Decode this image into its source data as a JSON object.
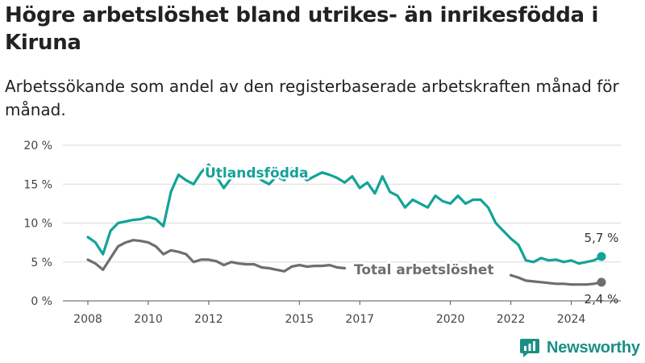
{
  "title": "Högre arbetslöshet bland utrikes- än inrikesfödda i Kiruna",
  "subtitle": "Arbetssökande som andel av den registerbaserade arbetskraften månad för månad.",
  "brand": {
    "name": "Newsworthy",
    "icon": "newsworthy-logo-icon",
    "color": "#1a8f85"
  },
  "colors": {
    "foreign": "#13a397",
    "total": "#6e6e6e"
  },
  "chart_data": {
    "type": "line",
    "title": "Högre arbetslöshet bland utrikes- än inrikesfödda i Kiruna",
    "subtitle": "Arbetssökande som andel av den registerbaserade arbetskraften månad för månad.",
    "y_unit": "%",
    "ylim": [
      0,
      20
    ],
    "yticks": [
      0,
      5,
      10,
      15,
      20
    ],
    "ytick_labels": [
      "0 %",
      "5 %",
      "10 %",
      "15 %",
      "20 %"
    ],
    "xlim": [
      2007.9,
      2025.3
    ],
    "xticks": [
      2008,
      2010,
      2012,
      2015,
      2017,
      2020,
      2022,
      2024
    ],
    "xtick_labels": [
      "2008",
      "2010",
      "2012",
      "2015",
      "2017",
      "2020",
      "2022",
      "2024"
    ],
    "grid": true,
    "legend": "direct labels on lines",
    "series": [
      {
        "name": "Utlandsfödda",
        "end_label": "5,7 %",
        "x": [
          2008.0,
          2008.25,
          2008.5,
          2008.75,
          2009.0,
          2009.25,
          2009.5,
          2009.75,
          2010.0,
          2010.25,
          2010.5,
          2010.75,
          2011.0,
          2011.25,
          2011.5,
          2011.75,
          2012.0,
          2012.25,
          2012.5,
          2012.75,
          2013.0,
          2013.25,
          2013.5,
          2013.75,
          2014.0,
          2014.25,
          2014.5,
          2014.75,
          2015.0,
          2015.25,
          2015.5,
          2015.75,
          2016.0,
          2016.25,
          2016.5,
          2016.75,
          2017.0,
          2017.25,
          2017.5,
          2017.75,
          2018.0,
          2018.25,
          2018.5,
          2018.75,
          2019.0,
          2019.25,
          2019.5,
          2019.75,
          2020.0,
          2020.25,
          2020.5,
          2020.75,
          2021.0,
          2021.25,
          2021.5,
          2021.75,
          2022.0,
          2022.25,
          2022.5,
          2022.75,
          2023.0,
          2023.25,
          2023.5,
          2023.75,
          2024.0,
          2024.25,
          2024.5,
          2024.75,
          2025.0
        ],
        "values": [
          8.2,
          7.5,
          6.0,
          9.0,
          10.0,
          10.2,
          10.4,
          10.5,
          10.8,
          10.5,
          9.6,
          14.0,
          16.2,
          15.5,
          15.0,
          16.5,
          17.5,
          16.0,
          14.5,
          15.8,
          16.5,
          16.0,
          16.4,
          15.5,
          15.0,
          16.0,
          15.5,
          17.0,
          16.3,
          15.5,
          16.0,
          16.5,
          16.2,
          15.8,
          15.2,
          16.0,
          14.5,
          15.2,
          13.8,
          16.0,
          14.0,
          13.5,
          12.0,
          13.0,
          12.5,
          12.0,
          13.5,
          12.8,
          12.5,
          13.5,
          12.5,
          13.0,
          13.0,
          12.0,
          10.0,
          9.0,
          8.0,
          7.2,
          5.2,
          5.0,
          5.5,
          5.2,
          5.3,
          5.0,
          5.2,
          4.8,
          5.0,
          5.2,
          5.7
        ]
      },
      {
        "name": "Total arbetslöshet",
        "end_label": "2,4 %",
        "x": [
          2008.0,
          2008.25,
          2008.5,
          2008.75,
          2009.0,
          2009.25,
          2009.5,
          2009.75,
          2010.0,
          2010.25,
          2010.5,
          2010.75,
          2011.0,
          2011.25,
          2011.5,
          2011.75,
          2012.0,
          2012.25,
          2012.5,
          2012.75,
          2013.0,
          2013.25,
          2013.5,
          2013.75,
          2014.0,
          2014.25,
          2014.5,
          2014.75,
          2015.0,
          2015.25,
          2015.5,
          2015.75,
          2016.0,
          2016.25,
          2016.5,
          2016.75,
          2017.0,
          2017.25,
          2017.5,
          2017.75,
          2018.0,
          2018.25,
          2018.5,
          2018.75,
          2019.0,
          2019.25,
          2019.5,
          2019.75,
          2020.0,
          2020.25,
          2020.5,
          2020.75,
          2021.0,
          2021.25,
          2021.5,
          2021.75,
          2022.0,
          2022.25,
          2022.5,
          2022.75,
          2023.0,
          2023.25,
          2023.5,
          2023.75,
          2024.0,
          2024.25,
          2024.5,
          2024.75,
          2025.0
        ],
        "values": [
          5.3,
          4.8,
          4.0,
          5.5,
          7.0,
          7.5,
          7.8,
          7.7,
          7.5,
          7.0,
          6.0,
          6.5,
          6.3,
          6.0,
          5.0,
          5.3,
          5.3,
          5.1,
          4.6,
          5.0,
          4.8,
          4.7,
          4.7,
          4.3,
          4.2,
          4.0,
          3.8,
          4.4,
          4.6,
          4.4,
          4.5,
          4.5,
          4.6,
          4.3,
          4.2,
          null,
          null,
          null,
          null,
          null,
          null,
          null,
          null,
          null,
          null,
          null,
          null,
          null,
          null,
          null,
          null,
          null,
          null,
          null,
          null,
          null,
          3.3,
          3.0,
          2.6,
          2.5,
          2.4,
          2.3,
          2.2,
          2.2,
          2.1,
          2.1,
          2.1,
          2.2,
          2.4
        ]
      }
    ]
  }
}
